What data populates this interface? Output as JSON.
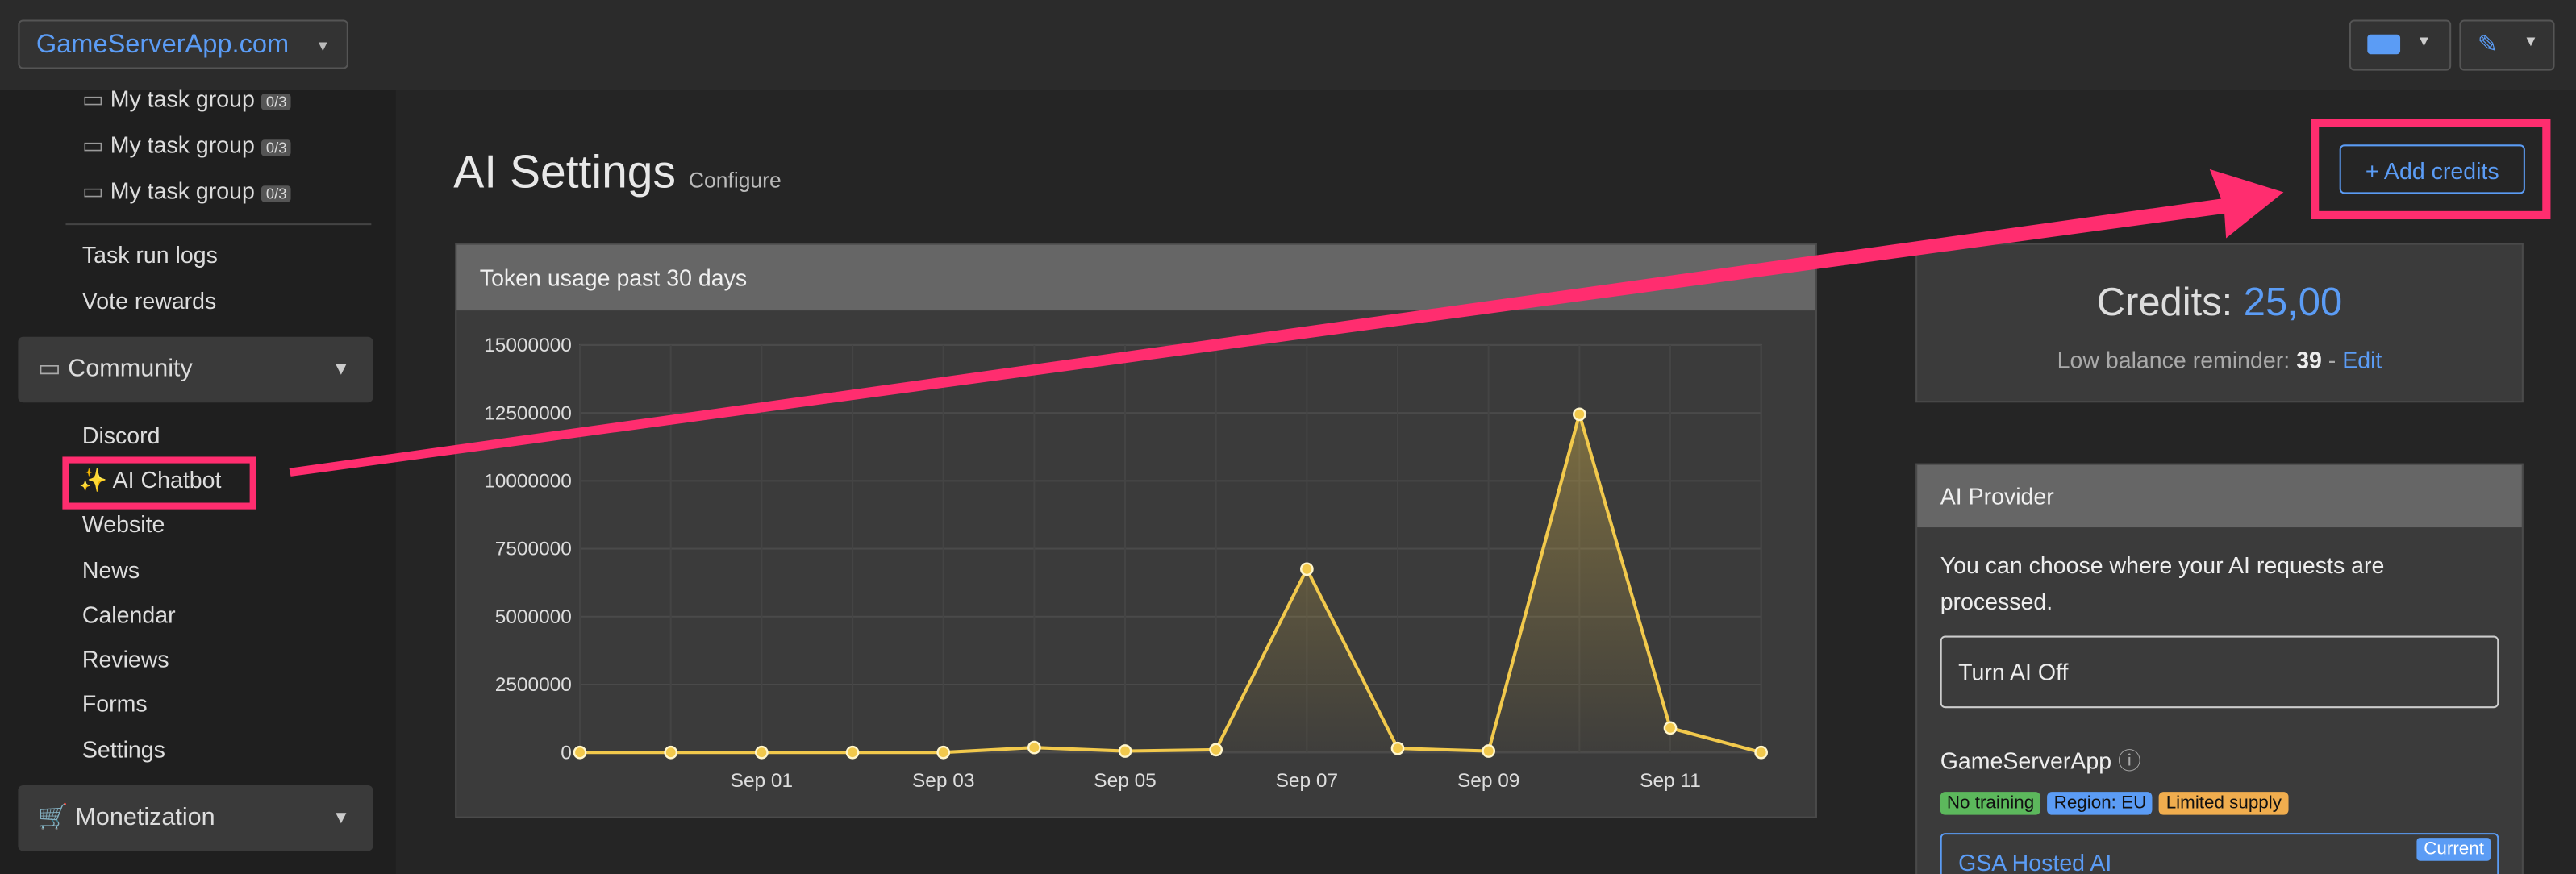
{
  "header": {
    "site": "GameServerApp.com"
  },
  "sidebar": {
    "task_groups": [
      {
        "label": "My task group",
        "badge": "0/3"
      },
      {
        "label": "My task group",
        "badge": "0/3"
      },
      {
        "label": "My task group",
        "badge": "0/3"
      }
    ],
    "links": [
      "Task run logs",
      "Vote rewards"
    ],
    "community": {
      "title": "Community",
      "items": [
        "Discord",
        "✨ AI Chatbot",
        "Website",
        "News",
        "Calendar",
        "Reviews",
        "Forms",
        "Settings"
      ]
    },
    "monetization": "Monetization"
  },
  "page": {
    "title": "AI Settings",
    "subtitle": "Configure",
    "add_credits": "+ Add credits"
  },
  "credits": {
    "label": "Credits:",
    "amount": "25,00",
    "reminder_label": "Low balance reminder:",
    "reminder_value": "39",
    "separator": "-",
    "edit": "Edit"
  },
  "provider": {
    "title": "AI Provider",
    "description": "You can choose where your AI requests are processed.",
    "off_option": "Turn AI Off",
    "vendor": "GameServerApp",
    "badges": [
      "No training",
      "Region: EU",
      "Limited supply"
    ],
    "hosted": "GSA Hosted AI",
    "current": "Current"
  },
  "chart_data": {
    "type": "line",
    "title": "Token usage past 30 days",
    "categories": [
      null,
      null,
      "Sep 01",
      null,
      "Sep 03",
      null,
      "Sep 05",
      null,
      "Sep 07",
      null,
      "Sep 09",
      null,
      "Sep 11",
      null
    ],
    "values": [
      0,
      0,
      0,
      0,
      0,
      180000,
      50000,
      100000,
      6750000,
      150000,
      50000,
      12450000,
      900000,
      0
    ],
    "color": "#f2c94c",
    "ylim": [
      0,
      15000000
    ],
    "yticks": [
      0,
      2500000,
      5000000,
      7500000,
      10000000,
      12500000,
      15000000
    ],
    "grid": true
  }
}
